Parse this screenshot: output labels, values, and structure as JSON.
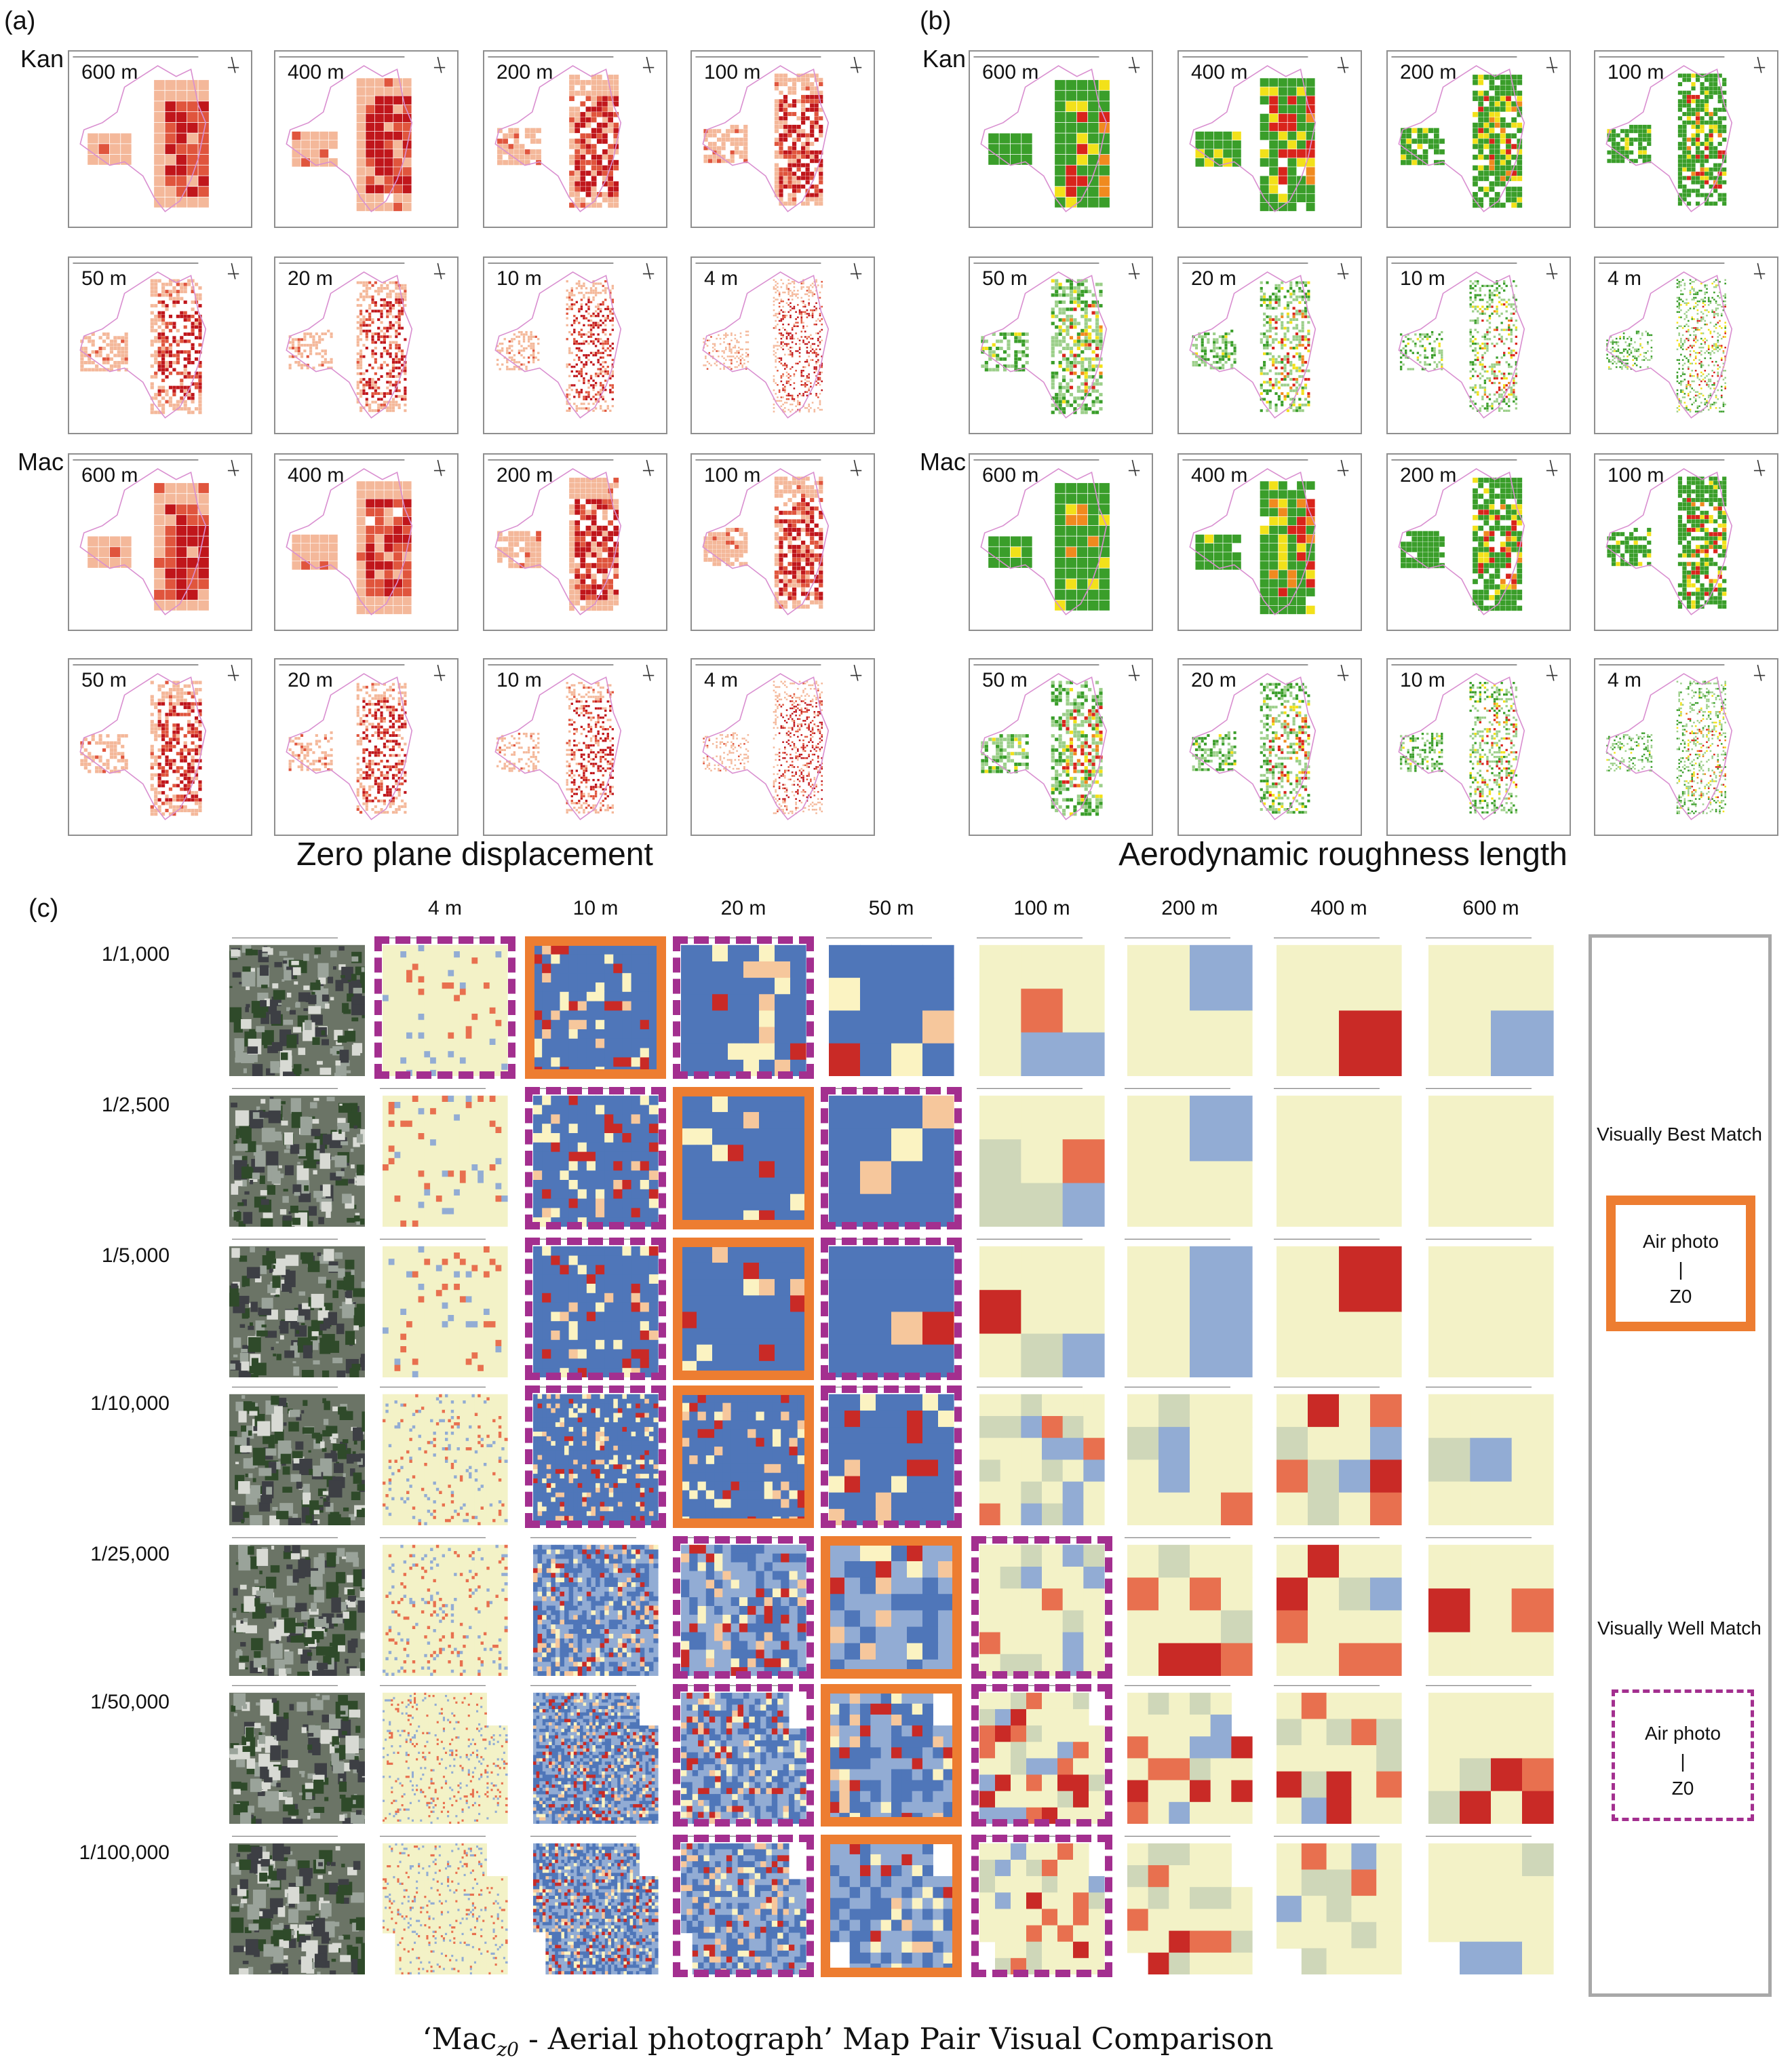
{
  "panel_a": {
    "letter": "(a)",
    "groups": [
      {
        "label": "Kan",
        "resolutions": [
          "600 m",
          "400 m",
          "200 m",
          "100 m",
          "50 m",
          "20 m",
          "10 m",
          "4 m"
        ]
      },
      {
        "label": "Mac",
        "resolutions": [
          "600 m",
          "400 m",
          "200 m",
          "100 m",
          "50 m",
          "20 m",
          "10 m",
          "4 m"
        ]
      }
    ],
    "caption": "Zero plane displacement"
  },
  "panel_b": {
    "letter": "(b)",
    "groups": [
      {
        "label": "Kan",
        "resolutions": [
          "600 m",
          "400 m",
          "200 m",
          "100 m",
          "50 m",
          "20 m",
          "10 m",
          "4 m"
        ]
      },
      {
        "label": "Mac",
        "resolutions": [
          "600 m",
          "400 m",
          "200 m",
          "100 m",
          "50 m",
          "20 m",
          "10 m",
          "4 m"
        ]
      }
    ],
    "caption": "Aerodynamic roughness length"
  },
  "panel_c": {
    "letter": "(c)",
    "columns": [
      "4 m",
      "10 m",
      "20 m",
      "50 m",
      "100 m",
      "200 m",
      "400 m",
      "600 m"
    ],
    "scales": [
      "1/1,000",
      "1/2,500",
      "1/5,000",
      "1/10,000",
      "1/25,000",
      "1/50,000",
      "1/100,000"
    ],
    "highlights": [
      {
        "best": "10 m",
        "well": [
          "4 m",
          "20 m"
        ]
      },
      {
        "best": "20 m",
        "well": [
          "10 m",
          "50 m"
        ]
      },
      {
        "best": "20 m",
        "well": [
          "10 m",
          "50 m"
        ]
      },
      {
        "best": "20 m",
        "well": [
          "10 m",
          "50 m"
        ]
      },
      {
        "best": "50 m",
        "well": [
          "20 m",
          "100 m"
        ]
      },
      {
        "best": "50 m",
        "well": [
          "20 m",
          "100 m"
        ]
      },
      {
        "best": "50 m",
        "well": [
          "20 m",
          "100 m"
        ]
      }
    ],
    "legend": {
      "best_title": "Visually Best Match",
      "well_title": "Visually Well Match",
      "sample_top": "Air photo",
      "sample_mid": "|",
      "sample_bottom": "Z0",
      "best_color": "#ed7d31",
      "well_color": "#a32f8f"
    },
    "caption_prefix": "‘Mac",
    "caption_sub": "z0",
    "caption_suffix": " - Aerial photograph’ Map Pair Visual Comparison"
  },
  "colors": {
    "zd_dark": "#c0161b",
    "zd_mid": "#e0553d",
    "zd_light": "#f4b89a",
    "z0_green": "#3a9e2a",
    "z0_yellow": "#f2e11a",
    "z0_red": "#d9241b",
    "z0_orange": "#f08a1f",
    "outline_pink": "#d98fd0",
    "blue": "#4f76b9",
    "cream": "#f3f2c7",
    "sage": "#cfd7b9"
  }
}
